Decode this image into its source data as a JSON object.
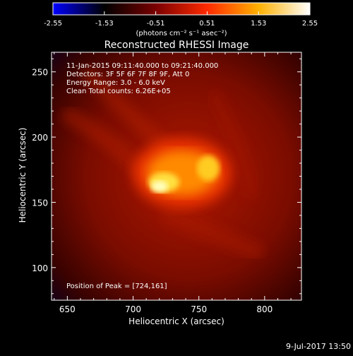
{
  "colorbar": {
    "min": -2.55,
    "max": 2.55,
    "ticks": [
      "-2.55",
      "-1.53",
      "-0.51",
      "0.51",
      "1.53",
      "2.55"
    ],
    "unit_label": "(photons cm⁻² s⁻¹ asec⁻²)",
    "colormap": [
      "#0000ff",
      "#000000",
      "#7a0000",
      "#ff2a00",
      "#ffb000",
      "#ffffff"
    ]
  },
  "plot": {
    "title": "Reconstructed RHESSI Image",
    "info_lines": [
      "11-Jan-2015 09:11:40.000 to 09:21:40.000",
      "Detectors: 3F 5F 6F 7F 8F 9F, Att 0",
      "Energy Range: 3.0 - 6.0 keV",
      "Clean     Total counts: 6.26E+05"
    ],
    "peak_label": "Position of Peak = [724,161]",
    "footer": "9-Jul-2017 13:50"
  },
  "chart_data": {
    "type": "heatmap",
    "title": "Reconstructed RHESSI Image",
    "xlabel": "Heliocentric X (arcsec)",
    "ylabel": "Heliocentric Y (arcsec)",
    "xlim": [
      638,
      828
    ],
    "ylim": [
      75,
      265
    ],
    "xticks": [
      650,
      700,
      750,
      800
    ],
    "yticks": [
      100,
      150,
      200,
      250
    ],
    "peak": [
      724,
      161
    ],
    "total_counts": "6.26E+05",
    "energy_range_keV": [
      3.0,
      6.0
    ],
    "colorbar_range": [
      -2.55,
      2.55
    ]
  }
}
